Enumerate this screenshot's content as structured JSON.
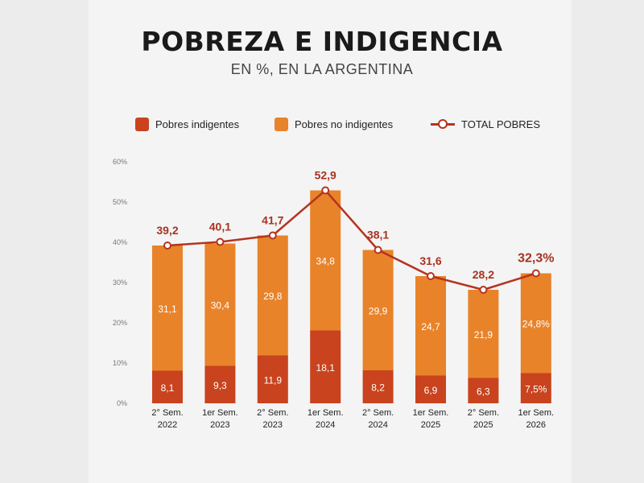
{
  "title": "POBREZA E INDIGENCIA",
  "subtitle": "EN %, EN LA ARGENTINA",
  "colors": {
    "indigentes": "#c8431e",
    "no_indigentes": "#e8832a",
    "total_line": "#b5341f",
    "total_label": "#a83220"
  },
  "legend": {
    "indigentes": "Pobres indigentes",
    "no_indigentes": "Pobres no indigentes",
    "total": "TOTAL POBRES"
  },
  "chart_data": {
    "type": "bar",
    "stacked": true,
    "categories": [
      [
        "2° Sem.",
        "2022"
      ],
      [
        "1er Sem.",
        "2023"
      ],
      [
        "2° Sem.",
        "2023"
      ],
      [
        "1er Sem.",
        "2024"
      ],
      [
        "2° Sem.",
        "2024"
      ],
      [
        "1er Sem.",
        "2025"
      ],
      [
        "2° Sem.",
        "2025"
      ],
      [
        "1er Sem.",
        "2026"
      ]
    ],
    "series": [
      {
        "name": "Pobres indigentes",
        "values": [
          8.1,
          9.3,
          11.9,
          18.1,
          8.2,
          6.9,
          6.3,
          7.5
        ],
        "labels": [
          "8,1",
          "9,3",
          "11,9",
          "18,1",
          "8,2",
          "6,9",
          "6,3",
          "7,5%"
        ]
      },
      {
        "name": "Pobres no indigentes",
        "values": [
          31.1,
          30.4,
          29.8,
          34.8,
          29.9,
          24.7,
          21.9,
          24.8
        ],
        "labels": [
          "31,1",
          "30,4",
          "29,8",
          "34,8",
          "29,9",
          "24,7",
          "21,9",
          "24,8%"
        ]
      },
      {
        "name": "TOTAL POBRES",
        "type": "line",
        "values": [
          39.2,
          40.1,
          41.7,
          52.9,
          38.1,
          31.6,
          28.2,
          32.3
        ],
        "labels": [
          "39,2",
          "40,1",
          "41,7",
          "52,9",
          "38,1",
          "31,6",
          "28,2",
          "32,3%"
        ]
      }
    ],
    "yticks": [
      "0%",
      "10%",
      "20%",
      "30%",
      "40%",
      "50%",
      "60%"
    ],
    "ylim": [
      0,
      60
    ],
    "grid": false,
    "legend_position": "top"
  }
}
